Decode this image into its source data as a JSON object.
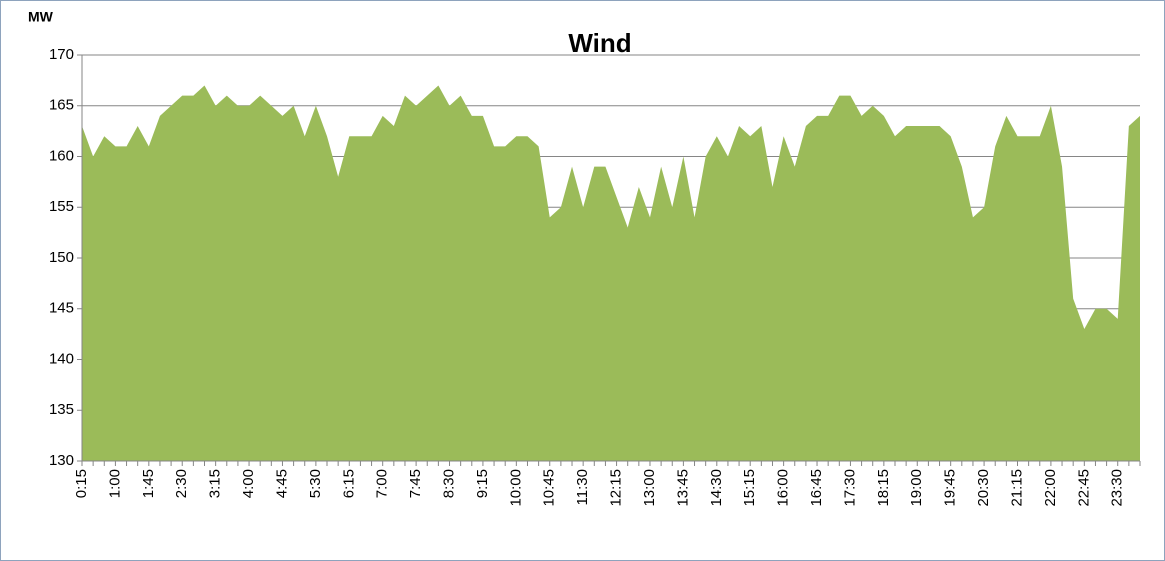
{
  "chart_data": {
    "type": "area",
    "title": "Wind",
    "y_label": "MW",
    "categories": [
      "0:15",
      null,
      null,
      "1:00",
      null,
      null,
      "1:45",
      null,
      null,
      "2:30",
      null,
      null,
      "3:15",
      null,
      null,
      "4:00",
      null,
      null,
      "4:45",
      null,
      null,
      "5:30",
      null,
      null,
      "6:15",
      null,
      null,
      "7:00",
      null,
      null,
      "7:45",
      null,
      null,
      "8:30",
      null,
      null,
      "9:15",
      null,
      null,
      "10:00",
      null,
      null,
      "10:45",
      null,
      null,
      "11:30",
      null,
      null,
      "12:15",
      null,
      null,
      "13:00",
      null,
      null,
      "13:45",
      null,
      null,
      "14:30",
      null,
      null,
      "15:15",
      null,
      null,
      "16:00",
      null,
      null,
      "16:45",
      null,
      null,
      "17:30",
      null,
      null,
      "18:15",
      null,
      null,
      "19:00",
      null,
      null,
      "19:45",
      null,
      null,
      "20:30",
      null,
      null,
      "21:15",
      null,
      null,
      "22:00",
      null,
      null,
      "22:45",
      null,
      null,
      "23:30",
      null,
      null
    ],
    "values": [
      163,
      160,
      162,
      161,
      161,
      163,
      161,
      164,
      165,
      166,
      166,
      167,
      165,
      166,
      165,
      165,
      166,
      165,
      164,
      165,
      162,
      165,
      162,
      158,
      162,
      162,
      162,
      164,
      163,
      166,
      165,
      166,
      167,
      165,
      166,
      164,
      164,
      161,
      161,
      162,
      162,
      161,
      154,
      155,
      159,
      155,
      159,
      159,
      156,
      153,
      157,
      154,
      159,
      155,
      160,
      154,
      160,
      162,
      160,
      163,
      162,
      163,
      157,
      162,
      159,
      163,
      164,
      164,
      166,
      166,
      164,
      165,
      164,
      162,
      163,
      163,
      163,
      163,
      162,
      159,
      154,
      155,
      161,
      164,
      162,
      162,
      162,
      165,
      159,
      146,
      143,
      145,
      145,
      144,
      163,
      164
    ],
    "color": "#9bbb59",
    "ylim": [
      130,
      170
    ],
    "yticks": [
      130,
      135,
      140,
      145,
      150,
      155,
      160,
      165,
      170
    ],
    "grid": true
  }
}
